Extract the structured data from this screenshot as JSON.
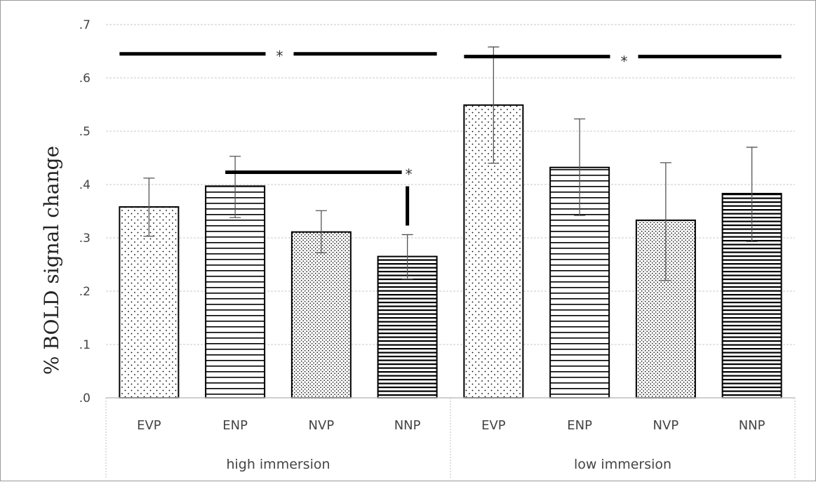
{
  "chart_data": {
    "type": "bar",
    "ylabel": "% BOLD signal  change",
    "ylim": [
      0,
      0.7
    ],
    "yticks": [
      ".0",
      ".1",
      ".2",
      ".3",
      ".4",
      ".5",
      ".6",
      ".7"
    ],
    "grid": true,
    "groups": [
      "high immersion",
      "low immersion"
    ],
    "categories": [
      "EVP",
      "ENP",
      "NVP",
      "NNP",
      "EVP",
      "ENP",
      "NVP",
      "NNP"
    ],
    "values": [
      0.358,
      0.397,
      0.311,
      0.265,
      0.549,
      0.432,
      0.333,
      0.383
    ],
    "error_bars": [
      [
        0.303,
        0.412
      ],
      [
        0.338,
        0.453
      ],
      [
        0.272,
        0.351
      ],
      [
        0.223,
        0.306
      ],
      [
        0.44,
        0.658
      ],
      [
        0.342,
        0.523
      ],
      [
        0.22,
        0.441
      ],
      [
        0.293,
        0.47
      ]
    ],
    "patterns": [
      "sparse-dots",
      "h-lines",
      "dense-dots",
      "h-lines-dense",
      "sparse-dots",
      "h-lines",
      "dense-dots",
      "h-lines-dense"
    ],
    "annotations": [
      {
        "type": "bracket",
        "from": 0,
        "to": 3,
        "y": 0.645,
        "label": "*"
      },
      {
        "type": "bracket",
        "from": 4,
        "to": 7,
        "y": 0.64,
        "label": "*"
      },
      {
        "type": "bracket",
        "from": 1,
        "to": 3,
        "y": 0.423,
        "label": "*"
      }
    ],
    "colors": {
      "bar_border": "#000000",
      "grid": "#c8c8c8",
      "axis": "#bfbfbf",
      "annotation": "#000000"
    }
  }
}
